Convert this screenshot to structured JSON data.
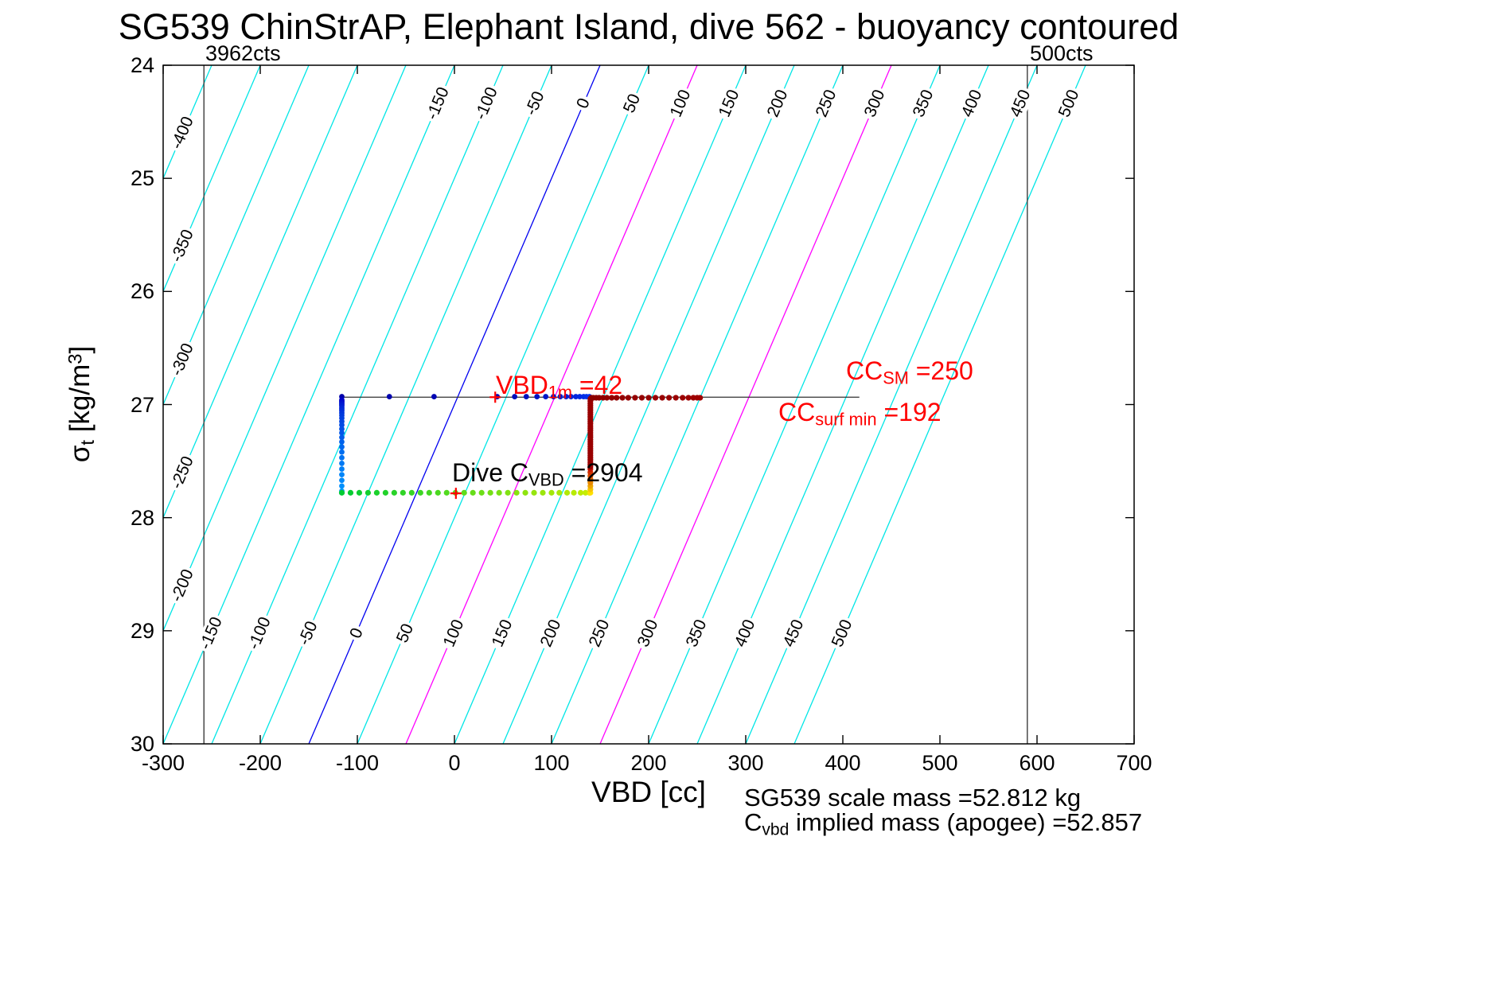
{
  "title": "SG539 ChinStrAP, Elephant Island, dive 562 - buoyancy contoured",
  "axes": {
    "xlabel": "VBD [cc]",
    "ylabel_parts": {
      "sigma": "σ",
      "sub": "t",
      "mid": " [kg/m",
      "sup": "3",
      "end": "]"
    },
    "x_ticks": [
      -300,
      -200,
      -100,
      0,
      100,
      200,
      300,
      400,
      500,
      600,
      700
    ],
    "y_ticks": [
      24,
      25,
      26,
      27,
      28,
      29,
      30
    ]
  },
  "annotations": {
    "vbd1m": {
      "pre": "VBD",
      "sub": "1m",
      "post": " =42"
    },
    "ccsm": {
      "pre": "CC",
      "sub": "SM",
      "post": " =250"
    },
    "ccsurf": {
      "pre": "CC",
      "sub": "surf min",
      "post": " =192"
    },
    "dive": {
      "pre": "Dive C",
      "sub": "VBD",
      "post": " =2904"
    },
    "footer1": "SG539 scale mass =52.812 kg",
    "footer2": {
      "pre": "C",
      "sub": "vbd",
      "post": " implied mass (apogee) =52.857"
    }
  },
  "chart_data": {
    "type": "scatter",
    "title": "SG539 ChinStrAP, Elephant Island, dive 562 - buoyancy contoured",
    "xlabel": "VBD [cc]",
    "ylabel": "sigma_t [kg/m^3]",
    "xlim": [
      -300,
      700
    ],
    "ylim": [
      24,
      30
    ],
    "y_axis_reversed": false,
    "grid": false,
    "contours": {
      "comment": "buoyancy contour lines, VBD = C + slope*(sigma - anchor)",
      "values": [
        -400,
        -350,
        -300,
        -250,
        -200,
        -150,
        -100,
        -50,
        0,
        50,
        100,
        150,
        200,
        250,
        300,
        350,
        400,
        450,
        500
      ],
      "slope_cc_per_sigma": -50,
      "anchor_sigma": 27,
      "color_default": "#00E6E6",
      "zero_value": 0,
      "color_zero": "#0000F0",
      "magenta_values": [
        100,
        300
      ],
      "color_magenta": "#FF00FF",
      "labels": {
        "top_sigma": 24.34,
        "bottom_sigma": 29.02,
        "left_x": -280,
        "two_label_min": -150
      }
    },
    "count_lines": [
      {
        "x": -258,
        "label": "3962cts"
      },
      {
        "x": 590,
        "label": "500cts"
      }
    ],
    "surface_line": {
      "sigma": 26.935,
      "x_start": -116,
      "x_end": 417,
      "color": "#303030"
    },
    "series": [
      {
        "name": "surface-bleed",
        "sigma": 26.93,
        "r": 3.4,
        "x": [
          -116,
          -67,
          -21,
          44,
          62,
          74,
          85,
          94,
          102,
          109,
          115,
          120,
          125,
          129,
          133,
          136,
          139
        ],
        "color_start": "#0000AA",
        "color_end": "#0033EE"
      },
      {
        "name": "descent",
        "x": -116,
        "r": 3.4,
        "sigma": [
          26.96,
          26.97,
          26.98,
          26.99,
          27.0,
          27.01,
          27.025,
          27.04,
          27.055,
          27.075,
          27.095,
          27.12,
          27.15,
          27.18,
          27.215,
          27.25,
          27.29,
          27.33,
          27.375,
          27.42,
          27.47,
          27.52,
          27.57,
          27.62,
          27.67,
          27.72,
          27.765
        ],
        "color_start": "#0000C8",
        "color_end": "#0096FF"
      },
      {
        "name": "apogee-pump",
        "sigma": 27.78,
        "r": 3.6,
        "x": [
          -116,
          -107,
          -98,
          -89,
          -80,
          -71,
          -62,
          -53,
          -44,
          -35,
          -26,
          -17,
          -8,
          1,
          10,
          19,
          28,
          37,
          46,
          55,
          64,
          73,
          82,
          91,
          100,
          108,
          116,
          123,
          130,
          135,
          139
        ],
        "color_start": "#00CC33",
        "color_end": "#CCEE00"
      },
      {
        "name": "climb-transition",
        "x": 140,
        "r": 3.6,
        "sigma": [
          27.78,
          27.75,
          27.72,
          27.69,
          27.66,
          27.63,
          27.6,
          27.57
        ],
        "color_start": "#FFE100",
        "color_end": "#C81400"
      },
      {
        "name": "climb",
        "x": 140,
        "r": 3.6,
        "sigma": [
          27.55,
          27.53,
          27.51,
          27.49,
          27.47,
          27.45,
          27.43,
          27.41,
          27.39,
          27.37,
          27.35,
          27.33,
          27.31,
          27.29,
          27.27,
          27.25,
          27.23,
          27.21,
          27.19,
          27.17,
          27.15,
          27.13,
          27.11,
          27.09,
          27.07,
          27.05,
          27.03,
          27.01,
          26.99,
          26.97,
          26.95
        ],
        "color_start": "#990000",
        "color_end": "#990000"
      },
      {
        "name": "surfacing-pump",
        "sigma": 26.94,
        "r": 3.6,
        "x": [
          141,
          143,
          146,
          149,
          153,
          157,
          162,
          167,
          173,
          179,
          186,
          193,
          200,
          207,
          214,
          221,
          228,
          235,
          241,
          246,
          250,
          253
        ],
        "color_start": "#8C0000",
        "color_end": "#A00000"
      }
    ],
    "markers": [
      {
        "name": "vbd-1m-marker",
        "x": 42,
        "sigma": 26.935
      },
      {
        "name": "dive-cvbd-marker",
        "x": 1.5,
        "sigma": 27.785
      }
    ],
    "marker_color": "#FF0000",
    "key_values": {
      "VBD_1m": 42,
      "CC_SM": 250,
      "CC_surf_min": 192,
      "Dive_C_VBD": 2904,
      "scale_mass_kg": 52.812,
      "implied_mass_apogee_kg": 52.857
    }
  }
}
